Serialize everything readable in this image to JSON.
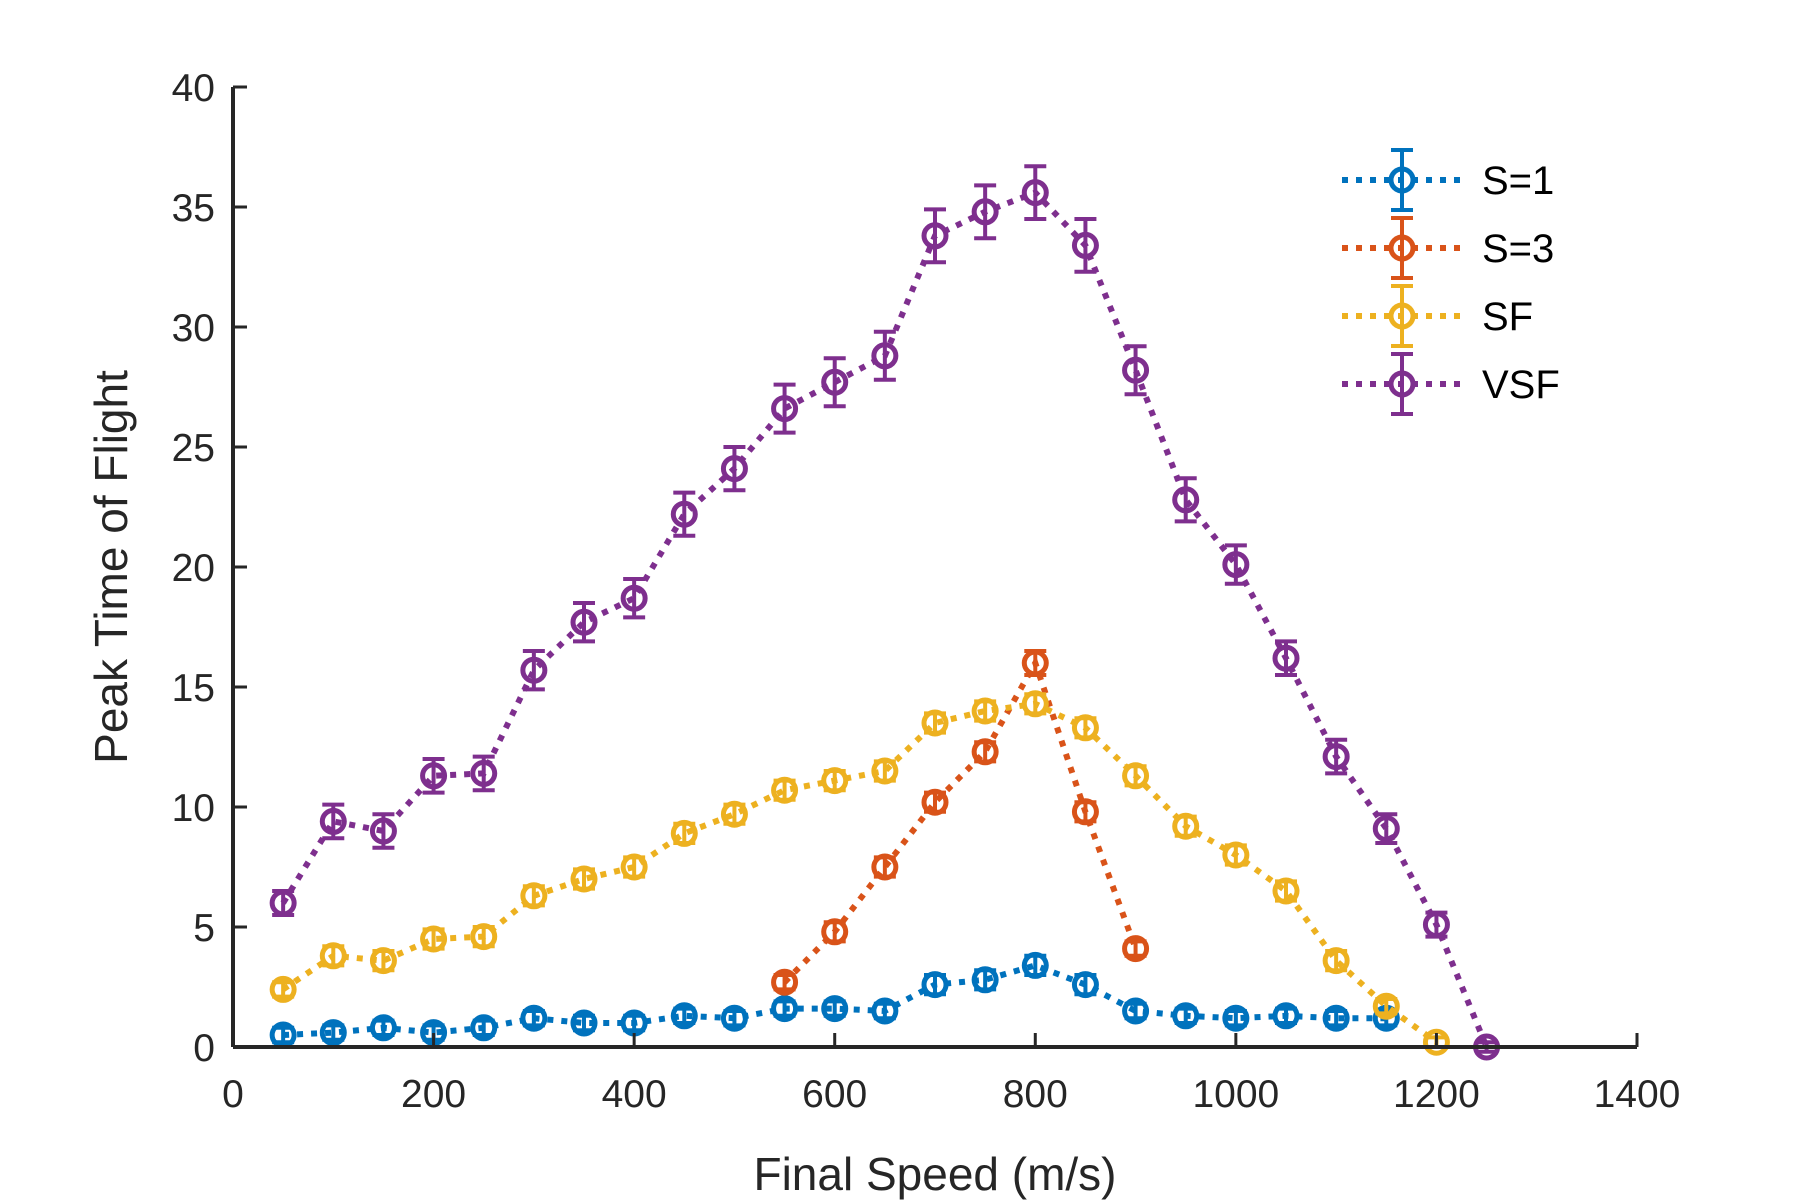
{
  "chart_data": {
    "type": "line",
    "xlabel": "Final Speed (m/s)",
    "ylabel": "Peak Time of Flight",
    "xlim": [
      0,
      1400
    ],
    "ylim": [
      0,
      40
    ],
    "xticks": [
      0,
      200,
      400,
      600,
      800,
      1000,
      1200,
      1400
    ],
    "yticks": [
      0,
      5,
      10,
      15,
      20,
      25,
      30,
      35,
      40
    ],
    "grid": false,
    "legend_position": "top-right",
    "line_style": "dotted",
    "marker": "circle",
    "error_bars": true,
    "series": [
      {
        "name": "S=1",
        "color": "#0072BD",
        "x": [
          50,
          100,
          150,
          200,
          250,
          300,
          350,
          400,
          450,
          500,
          550,
          600,
          650,
          700,
          750,
          800,
          850,
          900,
          950,
          1000,
          1050,
          1100,
          1150
        ],
        "y": [
          0.5,
          0.6,
          0.8,
          0.6,
          0.8,
          1.2,
          1.0,
          1.0,
          1.3,
          1.2,
          1.6,
          1.6,
          1.5,
          2.6,
          2.8,
          3.4,
          2.6,
          1.5,
          1.3,
          1.2,
          1.3,
          1.2,
          1.2
        ],
        "err": [
          0.3,
          0.3,
          0.3,
          0.3,
          0.3,
          0.3,
          0.3,
          0.3,
          0.3,
          0.3,
          0.3,
          0.3,
          0.3,
          0.4,
          0.4,
          0.4,
          0.4,
          0.3,
          0.3,
          0.3,
          0.3,
          0.3,
          0.3
        ]
      },
      {
        "name": "S=3",
        "color": "#D95319",
        "x": [
          550,
          600,
          650,
          700,
          750,
          800,
          850,
          900
        ],
        "y": [
          2.7,
          4.8,
          7.5,
          10.2,
          12.3,
          16.0,
          9.8,
          4.1
        ],
        "err": [
          0.3,
          0.4,
          0.4,
          0.4,
          0.4,
          0.5,
          0.4,
          0.3
        ]
      },
      {
        "name": "SF",
        "color": "#EDB120",
        "x": [
          50,
          100,
          150,
          200,
          250,
          300,
          350,
          400,
          450,
          500,
          550,
          600,
          650,
          700,
          750,
          800,
          850,
          900,
          950,
          1000,
          1050,
          1100,
          1150,
          1200
        ],
        "y": [
          2.4,
          3.8,
          3.6,
          4.5,
          4.6,
          6.3,
          7.0,
          7.5,
          8.9,
          9.7,
          10.7,
          11.1,
          11.5,
          13.5,
          14.0,
          14.3,
          13.3,
          11.3,
          9.2,
          8.0,
          6.5,
          3.6,
          1.7,
          0.2
        ],
        "err": [
          0.3,
          0.4,
          0.4,
          0.4,
          0.4,
          0.4,
          0.4,
          0.4,
          0.4,
          0.4,
          0.4,
          0.4,
          0.4,
          0.4,
          0.4,
          0.4,
          0.4,
          0.4,
          0.4,
          0.4,
          0.4,
          0.4,
          0.3,
          0.2
        ]
      },
      {
        "name": "VSF",
        "color": "#7E2F8E",
        "x": [
          50,
          100,
          150,
          200,
          250,
          300,
          350,
          400,
          450,
          500,
          550,
          600,
          650,
          700,
          750,
          800,
          850,
          900,
          950,
          1000,
          1050,
          1100,
          1150,
          1200,
          1250
        ],
        "y": [
          6.0,
          9.4,
          9.0,
          11.3,
          11.4,
          15.7,
          17.7,
          18.7,
          22.2,
          24.1,
          26.6,
          27.7,
          28.8,
          33.8,
          34.8,
          35.6,
          33.4,
          28.2,
          22.8,
          20.1,
          16.2,
          12.1,
          9.1,
          5.1,
          0.0
        ],
        "err": [
          0.5,
          0.7,
          0.7,
          0.7,
          0.7,
          0.8,
          0.8,
          0.8,
          0.9,
          0.9,
          1.0,
          1.0,
          1.0,
          1.1,
          1.1,
          1.1,
          1.1,
          1.0,
          0.9,
          0.8,
          0.7,
          0.7,
          0.6,
          0.5,
          0.2
        ]
      }
    ]
  }
}
